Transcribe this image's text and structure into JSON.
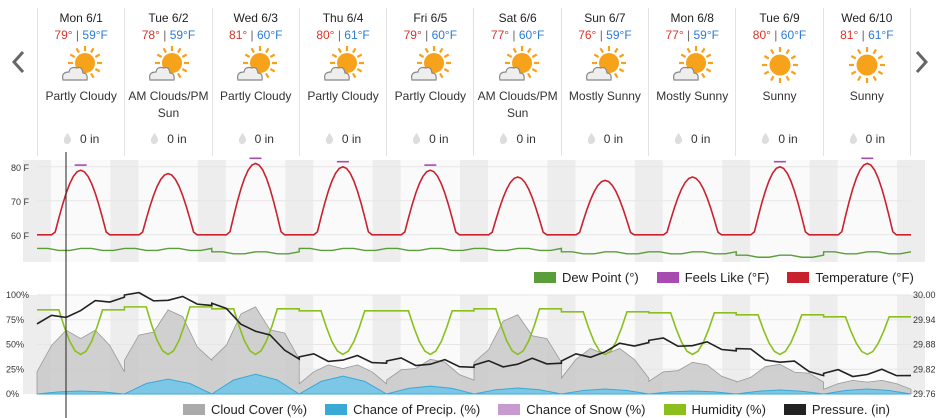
{
  "days": [
    {
      "name": "Mon 6/1",
      "hi": "79°",
      "lo": "59°F",
      "condition": "Partly Cloudy",
      "icon": "partly-cloudy-icon",
      "precip": "0 in"
    },
    {
      "name": "Tue 6/2",
      "hi": "78°",
      "lo": "59°F",
      "condition": "AM Clouds/PM Sun",
      "icon": "partly-cloudy-icon",
      "precip": "0 in"
    },
    {
      "name": "Wed 6/3",
      "hi": "81°",
      "lo": "60°F",
      "condition": "Partly Cloudy",
      "icon": "partly-cloudy-icon",
      "precip": "0 in"
    },
    {
      "name": "Thu 6/4",
      "hi": "80°",
      "lo": "61°F",
      "condition": "Partly Cloudy",
      "icon": "partly-cloudy-icon",
      "precip": "0 in"
    },
    {
      "name": "Fri 6/5",
      "hi": "79°",
      "lo": "60°F",
      "condition": "Partly Cloudy",
      "icon": "partly-cloudy-icon",
      "precip": "0 in"
    },
    {
      "name": "Sat 6/6",
      "hi": "77°",
      "lo": "60°F",
      "condition": "AM Clouds/PM Sun",
      "icon": "partly-cloudy-icon",
      "precip": "0 in"
    },
    {
      "name": "Sun 6/7",
      "hi": "76°",
      "lo": "59°F",
      "condition": "Mostly Sunny",
      "icon": "partly-cloudy-icon",
      "precip": "0 in"
    },
    {
      "name": "Mon 6/8",
      "hi": "77°",
      "lo": "59°F",
      "condition": "Mostly Sunny",
      "icon": "partly-cloudy-icon",
      "precip": "0 in"
    },
    {
      "name": "Tue 6/9",
      "hi": "80°",
      "lo": "60°F",
      "condition": "Sunny",
      "icon": "sun-icon",
      "precip": "0 in"
    },
    {
      "name": "Wed 6/10",
      "hi": "81°",
      "lo": "61°F",
      "condition": "Sunny",
      "icon": "sun-icon",
      "precip": "0 in"
    }
  ],
  "sep": "|",
  "temp_chart": {
    "yticks": [
      "80 F",
      "70 F",
      "60 F"
    ],
    "legend": [
      {
        "label": "Dew Point (°)",
        "color": "#5a9e3a"
      },
      {
        "label": "Feels Like (°F)",
        "color": "#a74bb0"
      },
      {
        "label": "Temperature (°F)",
        "color": "#c8222f"
      }
    ]
  },
  "cond_chart": {
    "yticks_left": [
      "100%",
      "75%",
      "50%",
      "25%",
      "0%"
    ],
    "yticks_right": [
      "30.00",
      "29.94",
      "29.88",
      "29.82",
      "29.76"
    ],
    "legend": [
      {
        "label": "Cloud Cover (%)",
        "color": "#aaaaaa"
      },
      {
        "label": "Chance of Precip. (%)",
        "color": "#3aa9d6"
      },
      {
        "label": "Chance of Snow (%)",
        "color": "#c79bd0"
      },
      {
        "label": "Humidity (%)",
        "color": "#8bbf1e"
      },
      {
        "label": "Pressure. (in)",
        "color": "#222222"
      }
    ]
  },
  "chart_data": [
    {
      "type": "line",
      "x": [
        "6/1",
        "6/2",
        "6/3",
        "6/4",
        "6/5",
        "6/6",
        "6/7",
        "6/8",
        "6/9",
        "6/10"
      ],
      "series": [
        {
          "name": "Temperature (°F)",
          "values": [
            79,
            78,
            81,
            80,
            79,
            77,
            76,
            77,
            80,
            81
          ]
        },
        {
          "name": "Dew Point (°)",
          "values": [
            56,
            56,
            55,
            56,
            56,
            56,
            55,
            55,
            54,
            55
          ]
        }
      ],
      "ylim": [
        52,
        82
      ]
    },
    {
      "type": "line",
      "x": [
        "6/1",
        "6/2",
        "6/3",
        "6/4",
        "6/5",
        "6/6",
        "6/7",
        "6/8",
        "6/9",
        "6/10"
      ],
      "series": [
        {
          "name": "Humidity (%)",
          "values": [
            85,
            88,
            86,
            84,
            84,
            86,
            83,
            82,
            80,
            78
          ]
        },
        {
          "name": "Cloud Cover (%)",
          "values": [
            70,
            85,
            88,
            32,
            35,
            80,
            50,
            32,
            30,
            15
          ]
        },
        {
          "name": "Pressure. (in)",
          "values": [
            29.93,
            30.0,
            29.98,
            29.85,
            29.84,
            29.83,
            29.84,
            29.89,
            29.87,
            29.81
          ]
        }
      ],
      "ylim": [
        0,
        100
      ]
    }
  ]
}
